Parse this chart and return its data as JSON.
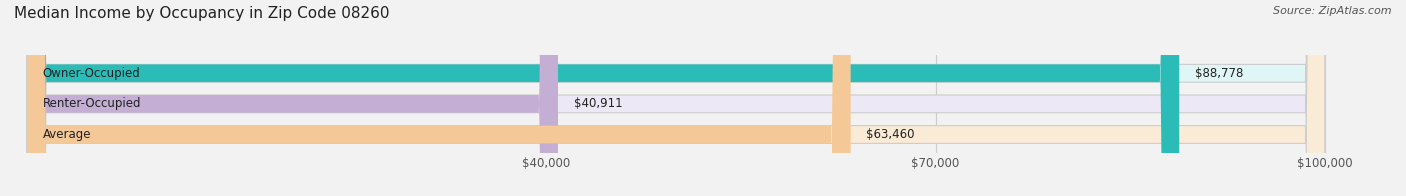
{
  "title": "Median Income by Occupancy in Zip Code 08260",
  "source": "Source: ZipAtlas.com",
  "categories": [
    "Owner-Occupied",
    "Renter-Occupied",
    "Average"
  ],
  "values": [
    88778,
    40911,
    63460
  ],
  "labels": [
    "$88,778",
    "$40,911",
    "$63,460"
  ],
  "bar_colors": [
    "#2bbcb8",
    "#c4aed4",
    "#f5c897"
  ],
  "bar_bg_colors": [
    "#e0f5f5",
    "#ede8f5",
    "#faebd7"
  ],
  "xlim_min": 0,
  "xlim_max": 100000,
  "xticks": [
    40000,
    70000,
    100000
  ],
  "xtick_labels": [
    "$40,000",
    "$70,000",
    "$100,000"
  ],
  "title_fontsize": 11,
  "source_fontsize": 8,
  "label_fontsize": 8.5,
  "tick_fontsize": 8.5,
  "background_color": "#f2f2f2",
  "bar_height": 0.58
}
